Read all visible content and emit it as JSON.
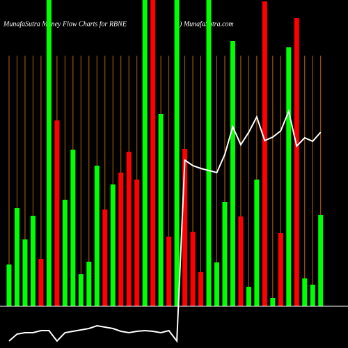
{
  "chart_data": {
    "type": "bar",
    "title": "MunafaSutra  Money Flow  Charts for RBNE",
    "source": ") MunafaSutra.com",
    "values": [
      60,
      141,
      96,
      130,
      68,
      440,
      267,
      153,
      225,
      46,
      64,
      202,
      139,
      175,
      192,
      222,
      182,
      440,
      440,
      276,
      100,
      440,
      226,
      107,
      49,
      440,
      63,
      150,
      381,
      129,
      28,
      182,
      438,
      12,
      105,
      372,
      414,
      40,
      31,
      131
    ],
    "colors": [
      "#00ff00",
      "#00ff00",
      "#00ff00",
      "#00ff00",
      "#ff0000",
      "#00ff00",
      "#ff0000",
      "#00ff00",
      "#00ff00",
      "#00ff00",
      "#00ff00",
      "#00ff00",
      "#ff0000",
      "#00ff00",
      "#ff0000",
      "#ff0000",
      "#ff0000",
      "#00ff00",
      "#ff0000",
      "#00ff00",
      "#ff0000",
      "#00ff00",
      "#ff0000",
      "#ff0000",
      "#ff0000",
      "#00ff00",
      "#00ff00",
      "#00ff00",
      "#00ff00",
      "#ff0000",
      "#00ff00",
      "#00ff00",
      "#ff0000",
      "#00ff00",
      "#ff0000",
      "#00ff00",
      "#ff0000",
      "#00ff00",
      "#00ff00",
      "#00ff00"
    ],
    "line_values": [
      -50,
      -40,
      -38,
      -38,
      -35,
      -35,
      -50,
      -38,
      -36,
      -34,
      -32,
      -28,
      -30,
      -32,
      -36,
      -38,
      -36,
      -35,
      -36,
      -38,
      -35,
      -50,
      210,
      202,
      198,
      195,
      192,
      218,
      258,
      232,
      250,
      272,
      238,
      243,
      252,
      280,
      230,
      242,
      237,
      250
    ],
    "line_color": "#ffffff",
    "guide_color": "#b8640a",
    "ylim": [
      0,
      440
    ]
  }
}
